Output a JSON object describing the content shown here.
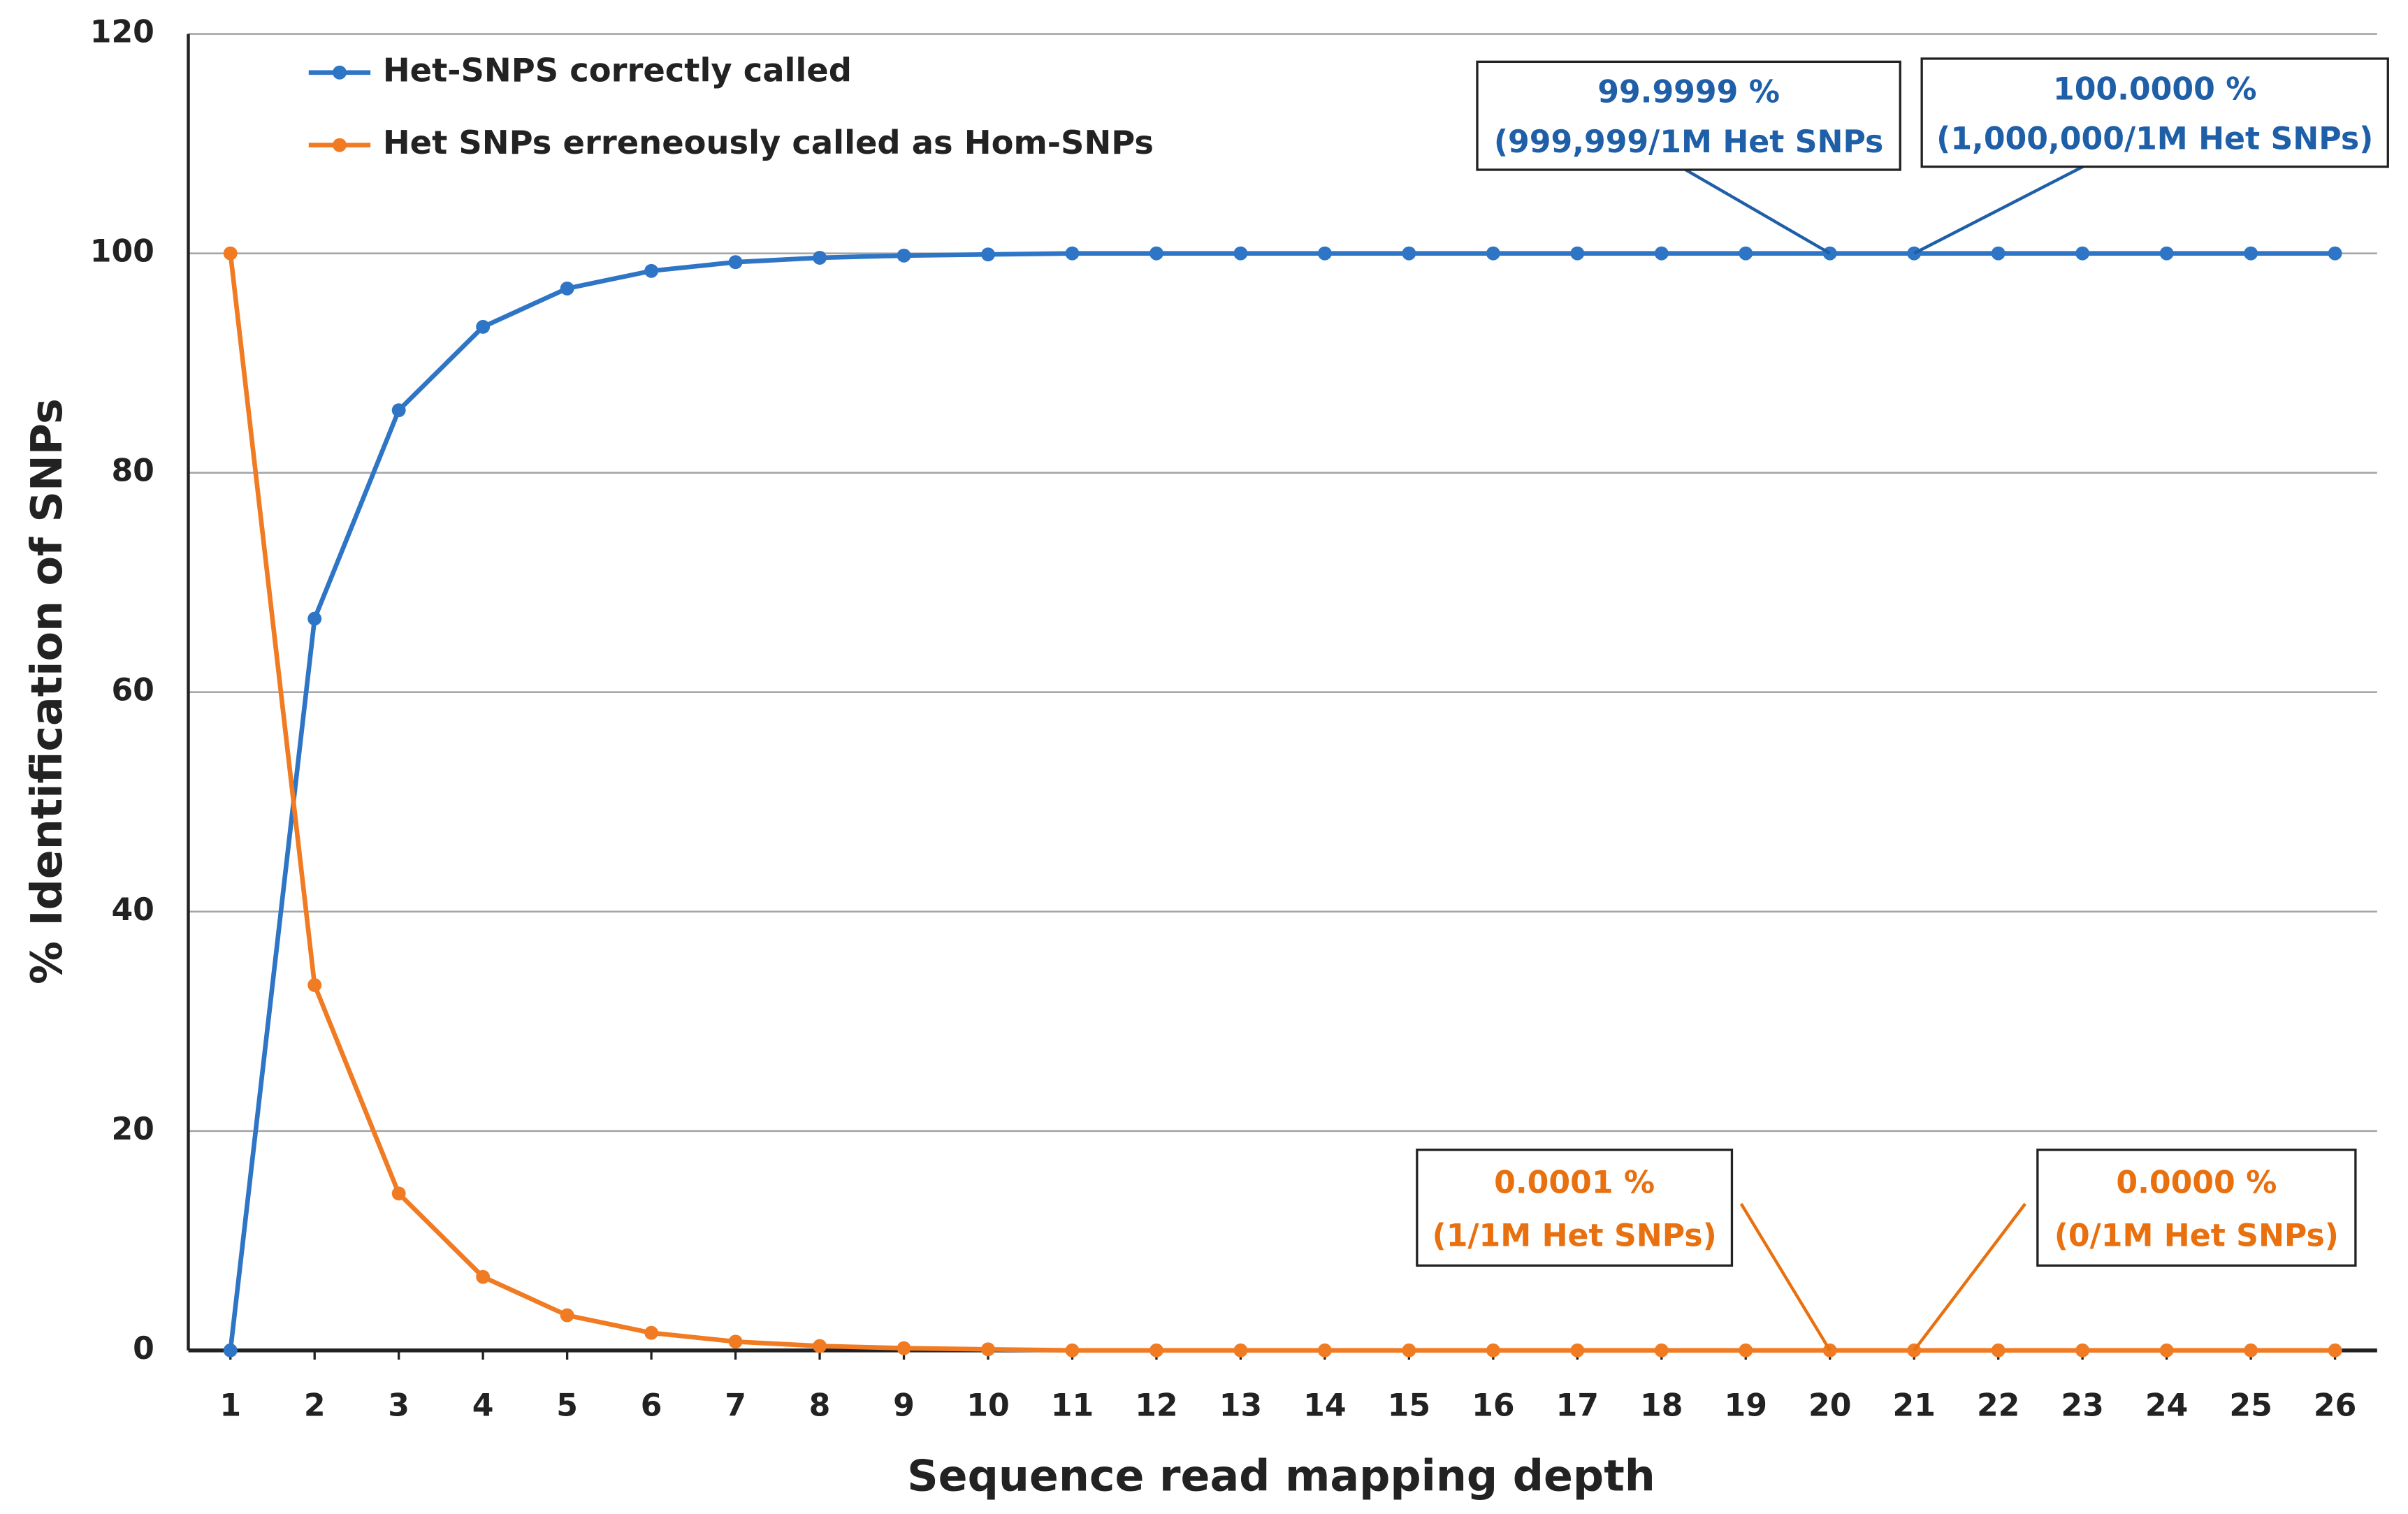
{
  "chart_data": {
    "type": "line",
    "x_label": "Sequence read mapping depth",
    "y_label": "% Identification of SNPs",
    "x": [
      1,
      2,
      3,
      4,
      5,
      6,
      7,
      8,
      9,
      10,
      11,
      12,
      13,
      14,
      15,
      16,
      17,
      18,
      19,
      20,
      21,
      22,
      23,
      24,
      25,
      26
    ],
    "xlim": [
      0.5,
      26.5
    ],
    "xticks": [
      1,
      2,
      3,
      4,
      5,
      6,
      7,
      8,
      9,
      10,
      11,
      12,
      13,
      14,
      15,
      16,
      17,
      18,
      19,
      20,
      21,
      22,
      23,
      24,
      25,
      26
    ],
    "ylim": [
      0,
      120
    ],
    "yticks": [
      0,
      20,
      40,
      60,
      80,
      100,
      120
    ],
    "grid": true,
    "legend": "upper left",
    "series": [
      {
        "name": "Het-SNPS correctly called",
        "color": "#2e75c6",
        "values": [
          0,
          66.7,
          85.7,
          93.3,
          96.8,
          98.4,
          99.2,
          99.6,
          99.8,
          99.9,
          100,
          100,
          100,
          100,
          100,
          100,
          100,
          100,
          100,
          100,
          100,
          100,
          100,
          100,
          100,
          100
        ]
      },
      {
        "name": "Het SNPs erreneously called as Hom-SNPs",
        "color": "#f07b22",
        "values": [
          100,
          33.3,
          14.3,
          6.7,
          3.2,
          1.6,
          0.8,
          0.4,
          0.2,
          0.1,
          0,
          0,
          0,
          0,
          0,
          0,
          0,
          0,
          0,
          0,
          0,
          0,
          0,
          0,
          0,
          0
        ]
      }
    ],
    "annotations": [
      {
        "lines": [
          "99.9999 %",
          "(999,999/1M Het SNPs"
        ],
        "x": 20,
        "y": 100,
        "color": "#1f5fa8"
      },
      {
        "lines": [
          "100.0000 %",
          "(1,000,000/1M Het SNPs)"
        ],
        "x": 21,
        "y": 100,
        "color": "#1f5fa8"
      },
      {
        "lines": [
          "0.0001 %",
          "(1/1M Het SNPs)"
        ],
        "x": 20,
        "y": 0,
        "color": "#e8700f"
      },
      {
        "lines": [
          "0.0000 %",
          "(0/1M Het SNPs)"
        ],
        "x": 21,
        "y": 0,
        "color": "#e8700f"
      }
    ]
  }
}
